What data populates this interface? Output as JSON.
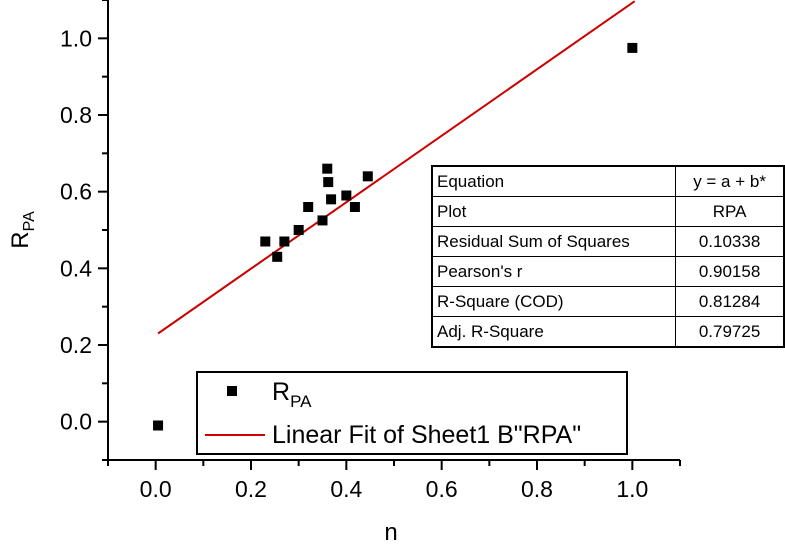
{
  "chart_data": {
    "type": "scatter",
    "xlabel": "n",
    "ylabel_main": "R",
    "ylabel_sub": "PA",
    "xlim": [
      -0.1,
      1.1
    ],
    "ylim": [
      -0.1,
      1.1
    ],
    "x_ticks": [
      "0.0",
      "0.2",
      "0.4",
      "0.6",
      "0.8",
      "1.0"
    ],
    "y_ticks": [
      "0.0",
      "0.2",
      "0.4",
      "0.6",
      "0.8",
      "1.0"
    ],
    "grid": false,
    "series": [
      {
        "name_main": "R",
        "name_sub": "PA",
        "marker": "square",
        "color": "#000000",
        "x": [
          0.005,
          0.23,
          0.255,
          0.27,
          0.3,
          0.32,
          0.35,
          0.36,
          0.362,
          0.368,
          0.4,
          0.418,
          0.445,
          1.0
        ],
        "y": [
          -0.01,
          0.47,
          0.43,
          0.47,
          0.5,
          0.56,
          0.525,
          0.66,
          0.625,
          0.58,
          0.59,
          0.56,
          0.64,
          0.975
        ]
      },
      {
        "name": "Linear Fit of Sheet1 B\"RPA\"",
        "type": "line",
        "color": "#cc0000",
        "x": [
          0.005,
          1.005
        ],
        "y": [
          0.23,
          1.097
        ]
      }
    ],
    "legend_position": "bottom-left",
    "fit_table": {
      "rows": [
        {
          "label": "Equation",
          "value": "y = a + b*"
        },
        {
          "label": "Plot",
          "value": "RPA"
        },
        {
          "label": "Residual Sum of Squares",
          "value": "0.10338"
        },
        {
          "label": "Pearson's r",
          "value": "0.90158"
        },
        {
          "label": "R-Square (COD)",
          "value": "0.81284"
        },
        {
          "label": "Adj. R-Square",
          "value": "0.79725"
        }
      ]
    }
  }
}
